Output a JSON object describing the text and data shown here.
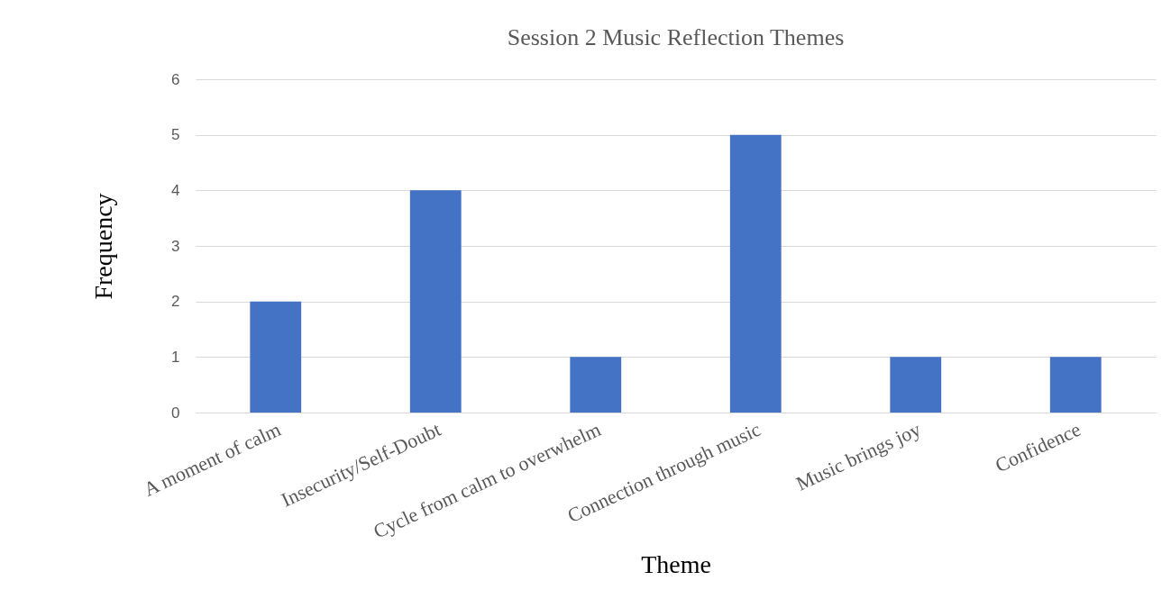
{
  "chart_data": {
    "type": "bar",
    "title": "Session 2 Music Reflection Themes",
    "xlabel": "Theme",
    "ylabel": "Frequency",
    "categories": [
      "A moment of calm",
      "Insecurity/Self-Doubt",
      "Cycle from calm to overwhelm",
      "Connection through music",
      "Music brings joy",
      "Confidence"
    ],
    "values": [
      2,
      4,
      1,
      5,
      1,
      1
    ],
    "color": "#4472c4",
    "ylim": [
      0,
      6
    ],
    "yticks": [
      0,
      1,
      2,
      3,
      4,
      5,
      6
    ],
    "grid": "y"
  }
}
